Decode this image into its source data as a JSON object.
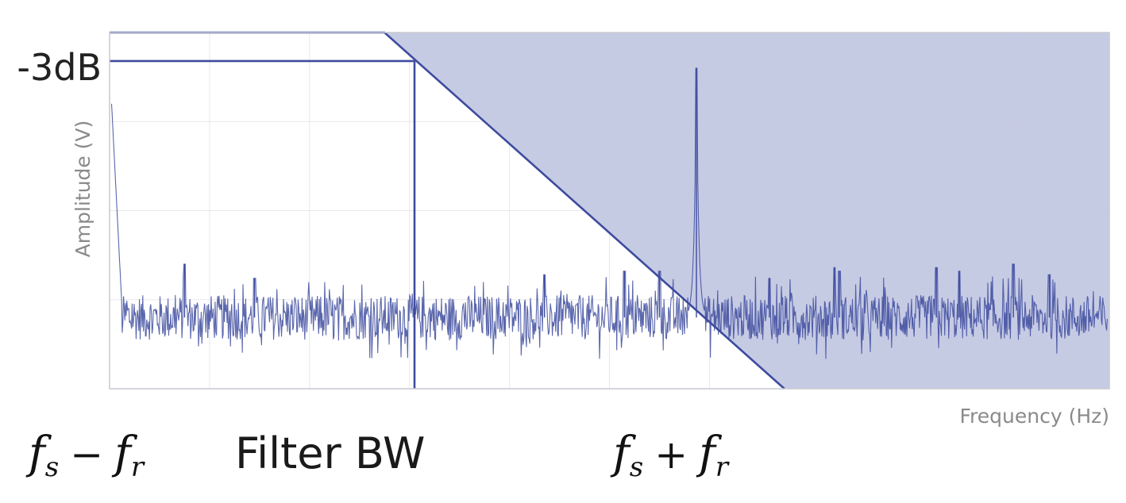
{
  "chart_data": {
    "type": "line",
    "xlabel": "Frequency (Hz)",
    "ylabel": "Amplitude (V)",
    "xlim": [
      0,
      100
    ],
    "ylim": [
      0,
      100
    ],
    "grid": true,
    "legend": "none",
    "colors": {
      "accent": "#3d4b9e",
      "fill": "#c3c8e3",
      "grid": "#e8e8ee",
      "text": "#222222",
      "axis_label": "#8a8a8a"
    },
    "annotations": {
      "level_label": "-3dB",
      "fs_minus_fr": {
        "f": "f",
        "s": "s",
        "op": "−",
        "r": "r"
      },
      "filter_bw_label": "Filter BW",
      "fs_plus_fr": {
        "f": "f",
        "s": "s",
        "op": "+",
        "r": "r"
      }
    },
    "filter": {
      "name": "low-pass filter",
      "passband_level": 100,
      "cutoff_level": 92,
      "rolloff_start_x": 27.5,
      "cutoff_x": 30.5,
      "rolloff_end_x": 67.5,
      "rolloff_end_level": 0
    },
    "spectrum": {
      "name": "noise spectrum",
      "noise_floor": 20,
      "noise_spread": 9,
      "start_level": 80,
      "samples": 1500,
      "peaks": [
        {
          "x": 7.5,
          "y": 35
        },
        {
          "x": 14.5,
          "y": 31
        },
        {
          "x": 43.5,
          "y": 32
        },
        {
          "x": 51.5,
          "y": 33
        },
        {
          "x": 55.0,
          "y": 33
        },
        {
          "x": 58.7,
          "y": 90
        },
        {
          "x": 66.0,
          "y": 31
        },
        {
          "x": 72.5,
          "y": 34
        },
        {
          "x": 73.0,
          "y": 33
        },
        {
          "x": 82.7,
          "y": 34
        },
        {
          "x": 85.0,
          "y": 33
        },
        {
          "x": 90.4,
          "y": 35
        },
        {
          "x": 94.0,
          "y": 32
        }
      ]
    }
  }
}
